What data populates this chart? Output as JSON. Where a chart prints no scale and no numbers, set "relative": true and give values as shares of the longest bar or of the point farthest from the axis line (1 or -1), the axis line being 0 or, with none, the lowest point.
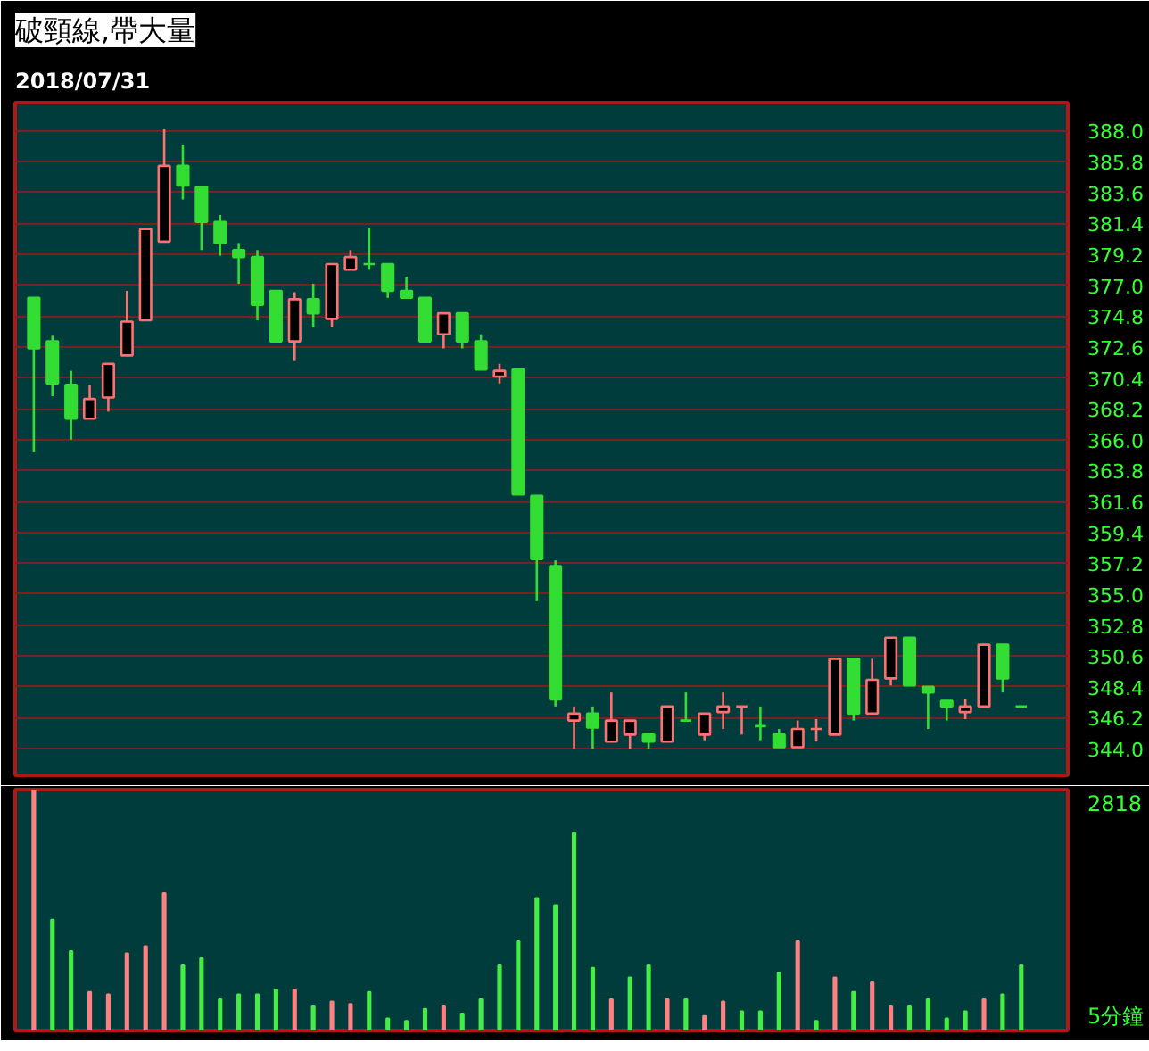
{
  "chart_data": [
    {
      "type": "candlestick",
      "title": "破頸線,帶大量",
      "subtitle": "2018/07/31",
      "categories": [
        null,
        null,
        null,
        null,
        null,
        null,
        null,
        null,
        null,
        null,
        null,
        null,
        null,
        null,
        null,
        null,
        null,
        null,
        null,
        null,
        null,
        null,
        null,
        null,
        null,
        null,
        null,
        null,
        null,
        null,
        null,
        null,
        null,
        null,
        null,
        null,
        null,
        null,
        null,
        null,
        null,
        null,
        null,
        null,
        null,
        null,
        null,
        null,
        null,
        null,
        null,
        null,
        null,
        null
      ],
      "ohlc": [
        [
          376.1,
          376.1,
          365.1,
          372.5
        ],
        [
          373.0,
          373.4,
          369.1,
          370.0
        ],
        [
          369.9,
          370.9,
          366.0,
          367.5
        ],
        [
          367.5,
          369.9,
          367.5,
          368.9
        ],
        [
          369.0,
          371.4,
          368.0,
          371.4
        ],
        [
          372.0,
          376.6,
          372.0,
          374.4
        ],
        [
          374.5,
          381.0,
          374.5,
          381.0
        ],
        [
          380.1,
          388.1,
          380.1,
          385.5
        ],
        [
          385.5,
          387.0,
          383.1,
          384.1
        ],
        [
          384.0,
          384.0,
          379.5,
          381.5
        ],
        [
          381.5,
          382.0,
          379.1,
          380.0
        ],
        [
          379.5,
          380.0,
          377.1,
          379.0
        ],
        [
          379.0,
          379.5,
          374.5,
          375.6
        ],
        [
          376.6,
          376.6,
          373.0,
          373.0
        ],
        [
          373.0,
          376.5,
          371.6,
          376.0
        ],
        [
          376.0,
          377.1,
          374.0,
          375.0
        ],
        [
          374.6,
          378.5,
          374.0,
          378.5
        ],
        [
          378.1,
          379.5,
          378.1,
          379.0
        ],
        [
          378.5,
          381.1,
          378.1,
          378.5
        ],
        [
          378.5,
          378.5,
          376.1,
          376.6
        ],
        [
          376.6,
          377.6,
          376.1,
          376.1
        ],
        [
          376.1,
          376.1,
          373.0,
          373.0
        ],
        [
          373.5,
          375.0,
          372.5,
          375.0
        ],
        [
          375.0,
          375.0,
          372.5,
          373.0
        ],
        [
          373.0,
          373.5,
          371.0,
          371.0
        ],
        [
          370.5,
          371.4,
          370.0,
          370.9
        ],
        [
          371.0,
          371.0,
          362.1,
          362.1
        ],
        [
          362.0,
          362.0,
          354.5,
          357.5
        ],
        [
          357.0,
          357.4,
          347.0,
          347.5
        ],
        [
          346.0,
          347.0,
          344.0,
          346.5
        ],
        [
          346.5,
          347.0,
          344.0,
          345.5
        ],
        [
          344.5,
          348.0,
          344.5,
          346.0
        ],
        [
          345.0,
          346.0,
          344.0,
          346.0
        ],
        [
          345.0,
          345.0,
          344.0,
          344.5
        ],
        [
          344.5,
          347.0,
          344.5,
          347.0
        ],
        [
          346.0,
          348.0,
          346.0,
          346.0
        ],
        [
          345.0,
          346.5,
          344.6,
          346.5
        ],
        [
          346.6,
          348.0,
          345.4,
          347.0
        ],
        [
          347.0,
          347.0,
          345.0,
          347.0
        ],
        [
          345.6,
          347.0,
          344.6,
          345.6
        ],
        [
          345.0,
          345.4,
          344.1,
          344.1
        ],
        [
          344.1,
          346.0,
          344.1,
          345.4
        ],
        [
          345.4,
          346.1,
          344.5,
          345.4
        ],
        [
          345.0,
          350.4,
          345.0,
          350.4
        ],
        [
          350.4,
          350.4,
          346.0,
          346.5
        ],
        [
          346.5,
          350.4,
          346.5,
          348.9
        ],
        [
          349.0,
          351.9,
          348.5,
          351.9
        ],
        [
          351.9,
          351.9,
          348.5,
          348.5
        ],
        [
          348.4,
          348.4,
          345.4,
          348.0
        ],
        [
          347.4,
          347.4,
          346.0,
          347.0
        ],
        [
          346.6,
          347.5,
          346.1,
          347.0
        ],
        [
          347.0,
          351.4,
          347.0,
          351.4
        ],
        [
          351.4,
          351.4,
          348.0,
          349.0
        ],
        [
          347.0,
          347.0,
          347.0,
          347.0
        ]
      ],
      "colors": [
        "#33dd33",
        "#33dd33",
        "#33dd33",
        "#ff7070",
        "#ff7070",
        "#ff7070",
        "#ff7070",
        "#ff7070",
        "#33dd33",
        "#33dd33",
        "#33dd33",
        "#33dd33",
        "#33dd33",
        "#33dd33",
        "#ff7070",
        "#33dd33",
        "#ff7070",
        "#ff7070",
        "#33dd33",
        "#33dd33",
        "#33dd33",
        "#33dd33",
        "#ff7070",
        "#33dd33",
        "#33dd33",
        "#ff7070",
        "#33dd33",
        "#33dd33",
        "#33dd33",
        "#ff7070",
        "#33dd33",
        "#ff7070",
        "#ff7070",
        "#33dd33",
        "#ff7070",
        "#33dd33",
        "#ff7070",
        "#ff7070",
        "#ff7070",
        "#33dd33",
        "#33dd33",
        "#ff7070",
        "#ff7070",
        "#ff7070",
        "#33dd33",
        "#ff7070",
        "#ff7070",
        "#33dd33",
        "#33dd33",
        "#33dd33",
        "#ff7070",
        "#ff7070",
        "#33dd33",
        "#33dd33"
      ],
      "ylim": [
        342.1,
        390.0
      ],
      "yticks": [
        {
          "value": 344.0,
          "label": "344.0"
        },
        346.2,
        348.4,
        350.6,
        352.8,
        {
          "value": 355.0,
          "label": "355.0"
        },
        357.2,
        359.4,
        361.6,
        363.8,
        {
          "value": 366.0,
          "label": "366.0"
        },
        368.2,
        370.4,
        372.6,
        374.8,
        {
          "value": 377.0,
          "label": "377.0"
        },
        379.2,
        381.4,
        383.6,
        385.8,
        {
          "value": 388.0,
          "label": "388.0"
        }
      ],
      "grid": "y",
      "tick_labels": "y"
    },
    {
      "type": "bar",
      "relative": true,
      "tick_labels": false,
      "annotations": [
        "2818",
        "5分鐘"
      ],
      "categories": [
        null,
        null,
        null,
        null,
        null,
        null,
        null,
        null,
        null,
        null,
        null,
        null,
        null,
        null,
        null,
        null,
        null,
        null,
        null,
        null,
        null,
        null,
        null,
        null,
        null,
        null,
        null,
        null,
        null,
        null,
        null,
        null,
        null,
        null,
        null,
        null,
        null,
        null,
        null,
        null,
        null,
        null,
        null,
        null,
        null,
        null,
        null,
        null,
        null,
        null,
        null,
        null,
        null,
        null
      ],
      "values": [
        1.0,
        0.46,
        0.33,
        0.16,
        0.15,
        0.32,
        0.35,
        0.57,
        0.27,
        0.3,
        0.13,
        0.15,
        0.15,
        0.17,
        0.17,
        0.1,
        0.12,
        0.11,
        0.16,
        0.05,
        0.04,
        0.09,
        0.1,
        0.07,
        0.13,
        0.27,
        0.37,
        0.55,
        0.52,
        0.82,
        0.26,
        0.13,
        0.22,
        0.27,
        0.13,
        0.13,
        0.06,
        0.12,
        0.08,
        0.08,
        0.24,
        0.37,
        0.04,
        0.22,
        0.16,
        0.2,
        0.1,
        0.1,
        0.13,
        0.05,
        0.08,
        0.13,
        0.15,
        0.27
      ],
      "colors": [
        "#ff8080",
        "#44ee44",
        "#44ee44",
        "#ff8080",
        "#ff8080",
        "#ff8080",
        "#ff8080",
        "#ff8080",
        "#44ee44",
        "#44ee44",
        "#44ee44",
        "#44ee44",
        "#44ee44",
        "#44ee44",
        "#ff8080",
        "#44ee44",
        "#ff8080",
        "#ff8080",
        "#44ee44",
        "#44ee44",
        "#44ee44",
        "#44ee44",
        "#ff8080",
        "#44ee44",
        "#44ee44",
        "#44ee44",
        "#44ee44",
        "#44ee44",
        "#44ee44",
        "#44ee44",
        "#44ee44",
        "#ff8080",
        "#44ee44",
        "#44ee44",
        "#ff8080",
        "#44ee44",
        "#ff8080",
        "#ff8080",
        "#44ee44",
        "#44ee44",
        "#44ee44",
        "#ff8080",
        "#44ee44",
        "#ff8080",
        "#44ee44",
        "#ff8080",
        "#ff8080",
        "#44ee44",
        "#44ee44",
        "#44ee44",
        "#44ee44",
        "#ff8080",
        "#44ee44",
        "#44ee44"
      ]
    }
  ]
}
